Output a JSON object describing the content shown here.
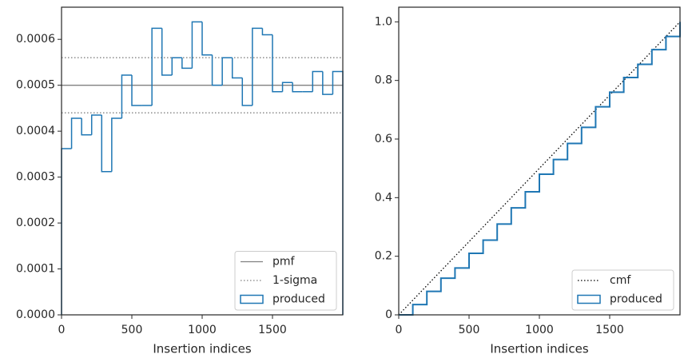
{
  "chart_data": [
    {
      "type": "histogram",
      "xlabel": "Insertion indices",
      "bins": [
        0,
        71.4,
        142.9,
        214.3,
        285.7,
        357.1,
        428.6,
        500,
        571.4,
        642.9,
        714.3,
        785.7,
        857.1,
        928.6,
        1000,
        1071.4,
        1142.9,
        1214.3,
        1285.7,
        1357.1,
        1428.6,
        1500,
        1571.4,
        1642.9,
        1714.3,
        1785.7,
        1857.1,
        1928.6,
        2000
      ],
      "values": [
        0.000362,
        0.000428,
        0.000392,
        0.000435,
        0.000312,
        0.000428,
        0.000522,
        0.000456,
        0.000456,
        0.000624,
        0.000522,
        0.00056,
        0.000537,
        0.000638,
        0.000566,
        0.0005,
        0.00056,
        0.000516,
        0.000456,
        0.000624,
        0.00061,
        0.000486,
        0.000506,
        0.000486,
        0.000486,
        0.00053,
        0.00048,
        0.00053
      ],
      "name": "produced",
      "color": "#1f77b4",
      "reference_lines": [
        {
          "name": "pmf",
          "values": [
            0.0005
          ],
          "color": "#808080",
          "style": "solid"
        },
        {
          "name": "1-sigma",
          "values": [
            0.00044,
            0.00056
          ],
          "color": "#808080",
          "style": "dotted"
        }
      ],
      "xlim": [
        0,
        2000
      ],
      "xticks": [
        0,
        500,
        1000,
        1500
      ],
      "ylim": [
        0,
        0.00067
      ],
      "yticks": [
        {
          "value": 0,
          "label": "0.0000"
        },
        0.0001,
        0.0002,
        0.0003,
        0.0004,
        0.0005,
        0.0006
      ],
      "legend": "lower right"
    },
    {
      "type": "line",
      "xlabel": "Insertion indices",
      "series": [
        {
          "name": "cmf",
          "color": "#000000",
          "style": "dotted",
          "x": [
            0,
            2000
          ],
          "values": [
            0,
            1
          ]
        },
        {
          "name": "produced",
          "color": "#1f77b4",
          "style": "step",
          "x": [
            0,
            100,
            200,
            300,
            400,
            500,
            600,
            700,
            800,
            900,
            1000,
            1100,
            1200,
            1300,
            1400,
            1500,
            1600,
            1700,
            1800,
            1900,
            2000
          ],
          "values": [
            0,
            0.035,
            0.08,
            0.125,
            0.16,
            0.21,
            0.255,
            0.31,
            0.365,
            0.42,
            0.48,
            0.53,
            0.585,
            0.64,
            0.71,
            0.76,
            0.81,
            0.855,
            0.905,
            0.95,
            1.0
          ]
        }
      ],
      "xlim": [
        0,
        2000
      ],
      "xticks": [
        0,
        500,
        1000,
        1500
      ],
      "ylim": [
        0,
        1.05
      ],
      "yticks": [
        0.0,
        0.2,
        0.4,
        0.6,
        0.8,
        {
          "value": 1.0,
          "label": "1.0"
        }
      ],
      "legend": "lower right"
    }
  ]
}
